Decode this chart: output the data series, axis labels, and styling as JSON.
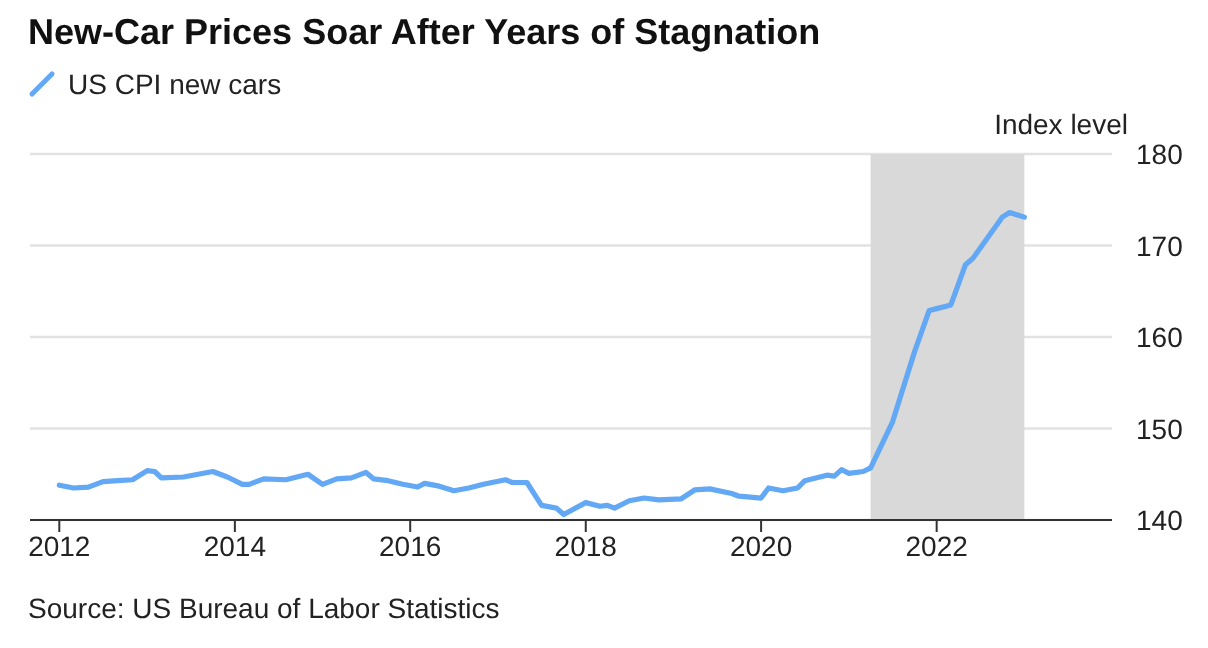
{
  "chart_data": {
    "type": "line",
    "title": "New-Car Prices Soar After Years of Stagnation",
    "ylabel": "Index level",
    "annotations": [
      "Source: US Bureau of Labor Statistics"
    ],
    "x": [
      "2012-01",
      "2012-03",
      "2012-05",
      "2012-07",
      "2012-09",
      "2012-11",
      "2013-01",
      "2013-02",
      "2013-03",
      "2013-06",
      "2013-10",
      "2013-12",
      "2014-02",
      "2014-03",
      "2014-05",
      "2014-08",
      "2014-11",
      "2015-01",
      "2015-03",
      "2015-05",
      "2015-07",
      "2015-08",
      "2015-10",
      "2015-12",
      "2016-02",
      "2016-03",
      "2016-05",
      "2016-07",
      "2016-09",
      "2016-11",
      "2017-02",
      "2017-03",
      "2017-05",
      "2017-07",
      "2017-09",
      "2017-10",
      "2018-01",
      "2018-03",
      "2018-04",
      "2018-05",
      "2018-07",
      "2018-09",
      "2018-11",
      "2019-02",
      "2019-04",
      "2019-06",
      "2019-09",
      "2019-10",
      "2020-01",
      "2020-02",
      "2020-04",
      "2020-06",
      "2020-07",
      "2020-10",
      "2020-11",
      "2020-12",
      "2021-01",
      "2021-03",
      "2021-04",
      "2021-07",
      "2021-10",
      "2021-12",
      "2022-01",
      "2022-03",
      "2022-05",
      "2022-06",
      "2022-10",
      "2022-11",
      "2023-01"
    ],
    "series": [
      {
        "name": "US CPI new cars",
        "color": "#62a8f5",
        "values": [
          143.8,
          143.5,
          143.6,
          144.2,
          144.3,
          144.4,
          145.4,
          145.3,
          144.6,
          144.7,
          145.3,
          144.7,
          143.9,
          143.9,
          144.5,
          144.4,
          145.0,
          143.9,
          144.5,
          144.6,
          145.2,
          144.5,
          144.3,
          143.9,
          143.6,
          144.0,
          143.7,
          143.2,
          143.5,
          143.9,
          144.4,
          144.1,
          144.1,
          141.6,
          141.3,
          140.6,
          141.9,
          141.5,
          141.6,
          141.3,
          142.1,
          142.4,
          142.2,
          142.3,
          143.3,
          143.4,
          142.9,
          142.6,
          142.4,
          143.5,
          143.2,
          143.5,
          144.3,
          144.9,
          144.8,
          145.5,
          145.1,
          145.3,
          145.7,
          150.7,
          158.4,
          162.9,
          163.1,
          163.5,
          167.9,
          168.6,
          173.1,
          173.6,
          173.1
        ]
      }
    ],
    "xlim": [
      "2011-09",
      "2024-01"
    ],
    "xticks": [
      "2012",
      "2014",
      "2016",
      "2018",
      "2020",
      "2022"
    ],
    "ylim": [
      140,
      180
    ],
    "yticks": [
      140,
      150,
      160,
      170,
      180
    ],
    "bands": [
      {
        "axis": "x",
        "from": "2021-04",
        "to": "2023-01",
        "color": "#d9d9d9"
      }
    ],
    "grid": "y",
    "legend": "top left",
    "line_style": "solid",
    "marker": "none"
  }
}
